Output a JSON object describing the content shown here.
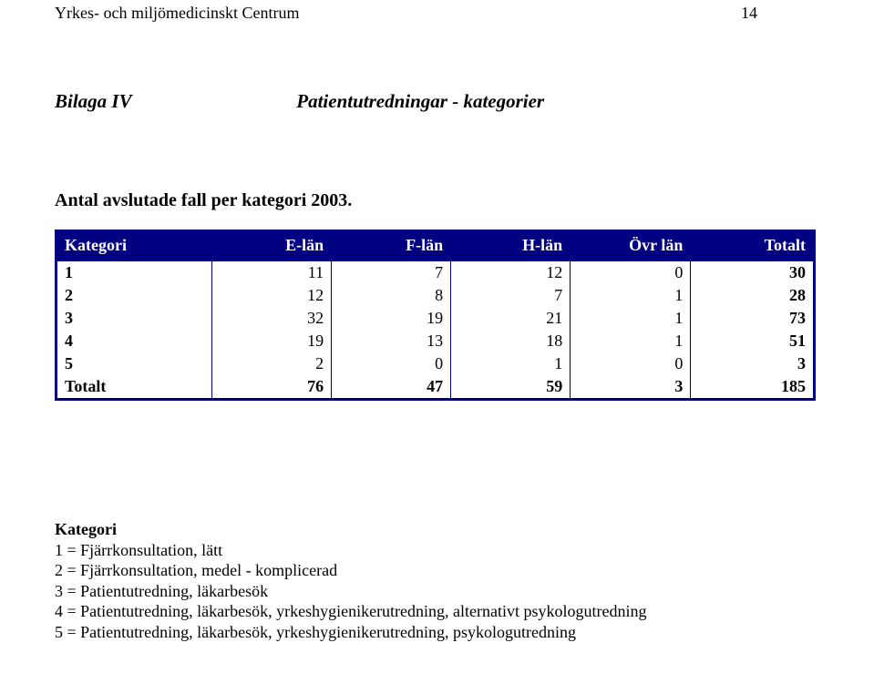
{
  "header": {
    "title": "Yrkes- och miljömedicinskt Centrum",
    "page_number": "14"
  },
  "bilaga": {
    "left": "Bilaga IV",
    "right": "Patientutredningar - kategorier"
  },
  "subtitle": "Antal avslutade fall per kategori 2003.",
  "table": {
    "headers": [
      "Kategori",
      "E-län",
      "F-län",
      "H-län",
      "Övr län",
      "Totalt"
    ],
    "rows": [
      [
        "1",
        "11",
        "7",
        "12",
        "0",
        "30"
      ],
      [
        "2",
        "12",
        "8",
        "7",
        "1",
        "28"
      ],
      [
        "3",
        "32",
        "19",
        "21",
        "1",
        "73"
      ],
      [
        "4",
        "19",
        "13",
        "18",
        "1",
        "51"
      ],
      [
        "5",
        "2",
        "0",
        "1",
        "0",
        "3"
      ],
      [
        "Totalt",
        "76",
        "47",
        "59",
        "3",
        "185"
      ]
    ],
    "header_bg": "#000080",
    "header_fg": "#ffffff",
    "border_color": "#000080"
  },
  "legend": {
    "heading": "Kategori",
    "items": [
      "1 = Fjärrkonsultation, lätt",
      "2 = Fjärrkonsultation, medel - komplicerad",
      "3 = Patientutredning, läkarbesök",
      "4 = Patientutredning, läkarbesök, yrkeshygienikerutredning, alternativt psykologutredning",
      "5 = Patientutredning, läkarbesök, yrkeshygienikerutredning, psykologutredning"
    ]
  }
}
